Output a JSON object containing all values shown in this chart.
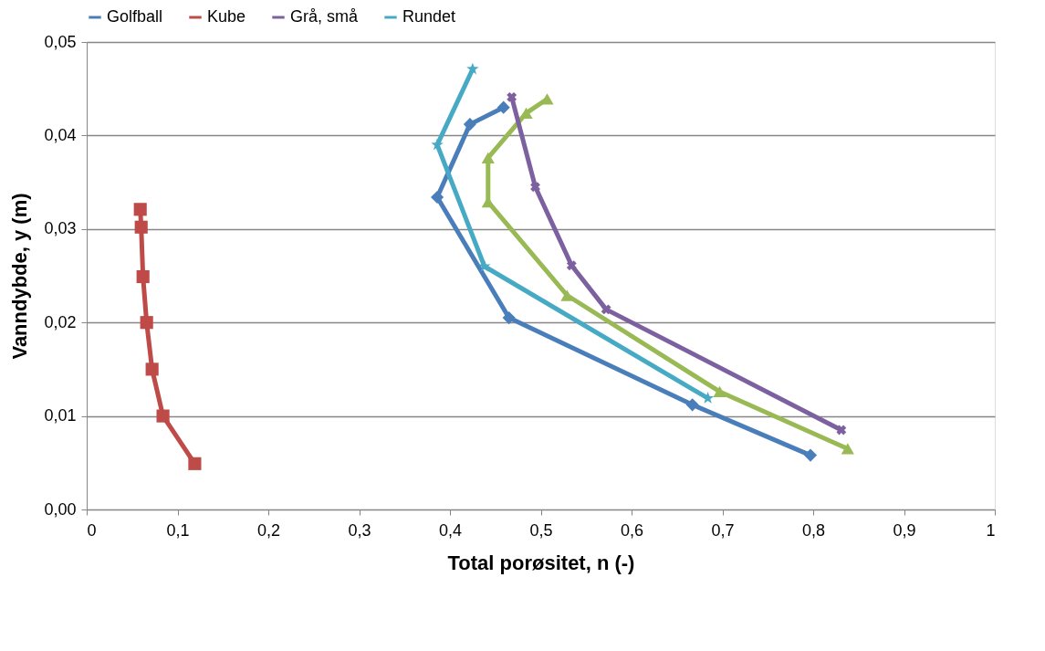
{
  "chart_data": {
    "type": "line",
    "xlabel": "Total porøsitet, n (-)",
    "ylabel": "Vanndybde, y (m)",
    "xlim": [
      0,
      1
    ],
    "ylim": [
      0,
      0.05
    ],
    "xticks": [
      0,
      {
        "value": 0.1,
        "label": "0,1"
      },
      {
        "value": 0.2,
        "label": "0,2"
      },
      {
        "value": 0.3,
        "label": "0,3"
      },
      {
        "value": 0.4,
        "label": "0,4"
      },
      {
        "value": 0.5,
        "label": "0,5"
      },
      {
        "value": 0.6,
        "label": "0,6"
      },
      {
        "value": 0.7,
        "label": "0,7"
      },
      {
        "value": 0.8,
        "label": "0,8"
      },
      {
        "value": 0.9,
        "label": "0,9"
      },
      1
    ],
    "yticks": [
      {
        "value": 0,
        "label": "0,00"
      },
      {
        "value": 0.01,
        "label": "0,01"
      },
      {
        "value": 0.02,
        "label": "0,02"
      },
      {
        "value": 0.03,
        "label": "0,03"
      },
      {
        "value": 0.04,
        "label": "0,04"
      },
      {
        "value": 0.05,
        "label": "0,05"
      }
    ],
    "grid": "y",
    "legend": "top",
    "line_style": "solid",
    "series": [
      {
        "name": "Golfball",
        "color": "#4a7ebb",
        "marker": "diamond",
        "x": [
          0.797,
          0.667,
          0.465,
          0.386,
          0.422,
          0.459
        ],
        "values": [
          0.0058,
          0.0112,
          0.0205,
          0.0334,
          0.0412,
          0.043
        ]
      },
      {
        "name": "Kube",
        "color": "#be4b48",
        "marker": "square",
        "x": [
          0.119,
          0.084,
          0.072,
          0.066,
          0.062,
          0.06,
          0.059
        ],
        "values": [
          0.0049,
          0.01,
          0.015,
          0.02,
          0.0249,
          0.0302,
          0.0321
        ]
      },
      {
        "color": "#98b954",
        "marker": "triangle",
        "x": [
          0.838,
          0.697,
          0.529,
          0.442,
          0.442,
          0.484,
          0.507
        ],
        "values": [
          0.0065,
          0.0126,
          0.0229,
          0.0329,
          0.0376,
          0.0424,
          0.0439
        ]
      },
      {
        "name": "Grå, små",
        "color": "#7d60a0",
        "marker": "cross",
        "x": [
          0.831,
          0.572,
          0.534,
          0.494,
          0.468
        ],
        "values": [
          0.0085,
          0.0214,
          0.0261,
          0.0345,
          0.0441
        ]
      },
      {
        "name": "Rundet",
        "color": "#46aac5",
        "marker": "star",
        "x": [
          0.684,
          0.438,
          0.386,
          0.425
        ],
        "values": [
          0.0119,
          0.026,
          0.039,
          0.0471
        ]
      }
    ]
  }
}
